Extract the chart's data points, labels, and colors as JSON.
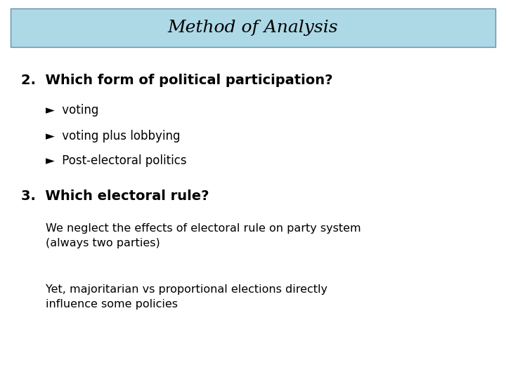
{
  "title": "Method of Analysis",
  "title_bg_color": "#add8e6",
  "title_border_color": "#6090b0",
  "bg_color": "#ffffff",
  "title_fontsize": 18,
  "section2_text": "2.  Which form of political participation?",
  "section2_fontsize": 14,
  "bullets": [
    "►  voting",
    "►  voting plus lobbying",
    "►  Post-electoral politics"
  ],
  "bullet_fontsize": 12,
  "section3_text": "3.  Which electoral rule?",
  "section3_fontsize": 14,
  "para1": "We neglect the effects of electoral rule on party system\n(always two parties)",
  "para2": "Yet, majoritarian vs proportional elections directly\ninfluence some policies",
  "para_fontsize": 11.5
}
